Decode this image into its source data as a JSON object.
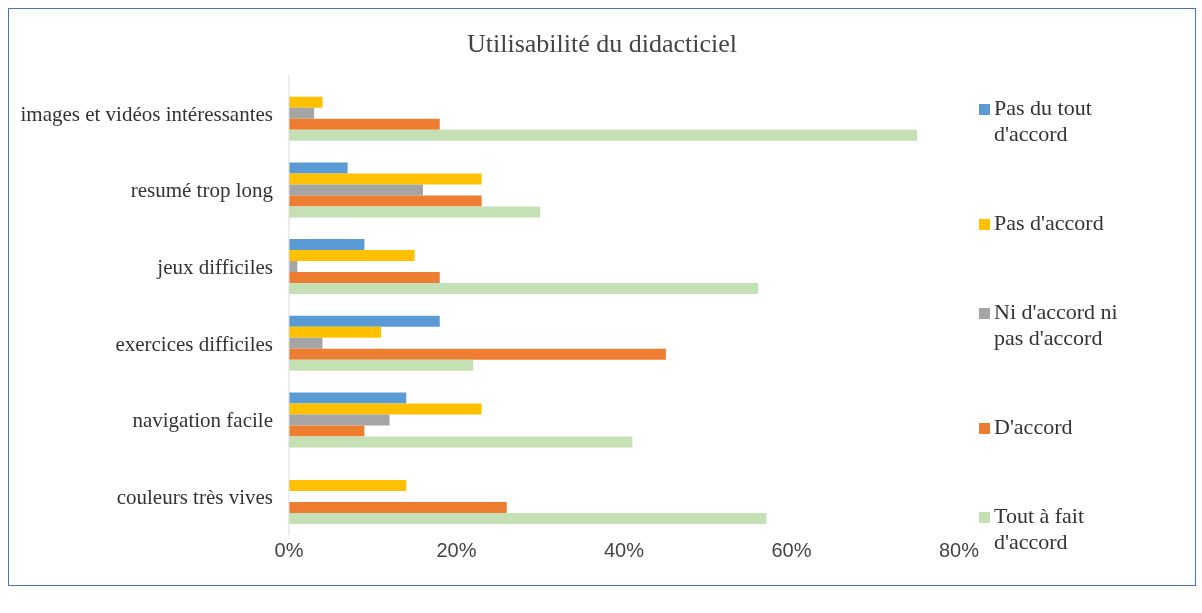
{
  "chart_data": {
    "type": "bar",
    "orientation": "horizontal",
    "title": "Utilisabilité du didacticiel",
    "categories": [
      "images et vidéos intéressantes",
      "resumé trop long",
      "jeux difficiles",
      "exercices difficiles",
      "navigation facile",
      "couleurs très vives"
    ],
    "series": [
      {
        "name": "Pas du tout d'accord",
        "color": "#5b9bd5",
        "values": [
          0,
          7,
          9,
          18,
          14,
          0
        ]
      },
      {
        "name": "Pas d'accord",
        "color": "#ffc000",
        "values": [
          4,
          23,
          15,
          11,
          23,
          14
        ]
      },
      {
        "name": "Ni d'accord ni pas d'accord",
        "color": "#a5a5a5",
        "values": [
          3,
          16,
          1,
          4,
          12,
          0
        ]
      },
      {
        "name": "D'accord",
        "color": "#ed7d31",
        "values": [
          18,
          23,
          18,
          45,
          9,
          26
        ]
      },
      {
        "name": "Tout à fait d'accord",
        "color": "#c5e0b4",
        "values": [
          75,
          30,
          56,
          22,
          41,
          57
        ]
      }
    ],
    "xlim": [
      0,
      80
    ],
    "xticks": [
      {
        "value": 0,
        "label": "0%"
      },
      {
        "value": 20,
        "label": "20%"
      },
      {
        "value": 40,
        "label": "40%"
      },
      {
        "value": 60,
        "label": "60%"
      },
      {
        "value": 80,
        "label": "80%"
      }
    ],
    "grid": false,
    "legend": "right"
  }
}
